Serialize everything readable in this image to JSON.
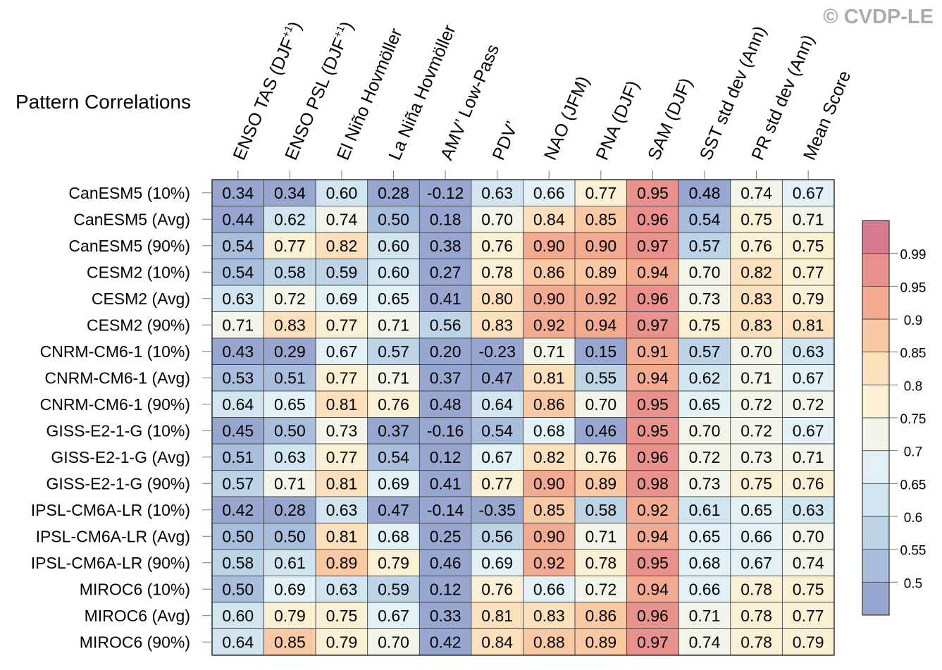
{
  "watermark": "© CVDP-LE",
  "chart_data": {
    "type": "heatmap",
    "title": "Pattern Correlations",
    "columns": [
      "ENSO TAS (DJF+1)",
      "ENSO PSL (DJF+1)",
      "El Niño Hovmöller",
      "La Niña Hovmöller",
      "AMV' Low-Pass",
      "PDV'",
      "NAO (JFM)",
      "PNA (DJF)",
      "SAM (DJF)",
      "SST std dev (Ann)",
      "PR std dev (Ann)",
      "Mean Score"
    ],
    "column_label_parts": [
      {
        "text": "ENSO TAS (DJF",
        "sup": "+1",
        "tail": ")"
      },
      {
        "text": "ENSO PSL (DJF",
        "sup": "+1",
        "tail": ")"
      },
      {
        "text": "El Niño Hovmöller",
        "sup": "",
        "tail": ""
      },
      {
        "text": "La Niña Hovmöller",
        "sup": "",
        "tail": ""
      },
      {
        "text": "AMV’ Low-Pass",
        "sup": "",
        "tail": ""
      },
      {
        "text": "PDV’",
        "sup": "",
        "tail": ""
      },
      {
        "text": "NAO (JFM)",
        "sup": "",
        "tail": ""
      },
      {
        "text": "PNA (DJF)",
        "sup": "",
        "tail": ""
      },
      {
        "text": "SAM (DJF)",
        "sup": "",
        "tail": ""
      },
      {
        "text": "SST std dev (Ann)",
        "sup": "",
        "tail": ""
      },
      {
        "text": "PR std dev (Ann)",
        "sup": "",
        "tail": ""
      },
      {
        "text": "Mean Score",
        "sup": "",
        "tail": ""
      }
    ],
    "rows": [
      "CanESM5 (10%)",
      "CanESM5 (Avg)",
      "CanESM5 (90%)",
      "CESM2 (10%)",
      "CESM2 (Avg)",
      "CESM2 (90%)",
      "CNRM-CM6-1 (10%)",
      "CNRM-CM6-1 (Avg)",
      "CNRM-CM6-1 (90%)",
      "GISS-E2-1-G (10%)",
      "GISS-E2-1-G (Avg)",
      "GISS-E2-1-G (90%)",
      "IPSL-CM6A-LR (10%)",
      "IPSL-CM6A-LR (Avg)",
      "IPSL-CM6A-LR (90%)",
      "MIROC6 (10%)",
      "MIROC6 (Avg)",
      "MIROC6 (90%)"
    ],
    "values": [
      [
        "0.34",
        "0.34",
        "0.60",
        "0.28",
        "-0.12",
        "0.63",
        "0.66",
        "0.77",
        "0.95",
        "0.48",
        "0.74",
        "0.67"
      ],
      [
        "0.44",
        "0.62",
        "0.74",
        "0.50",
        "0.18",
        "0.70",
        "0.84",
        "0.85",
        "0.96",
        "0.54",
        "0.75",
        "0.71"
      ],
      [
        "0.54",
        "0.77",
        "0.82",
        "0.60",
        "0.38",
        "0.76",
        "0.90",
        "0.90",
        "0.97",
        "0.57",
        "0.76",
        "0.75"
      ],
      [
        "0.54",
        "0.58",
        "0.59",
        "0.60",
        "0.27",
        "0.78",
        "0.86",
        "0.89",
        "0.94",
        "0.70",
        "0.82",
        "0.77"
      ],
      [
        "0.63",
        "0.72",
        "0.69",
        "0.65",
        "0.41",
        "0.80",
        "0.90",
        "0.92",
        "0.96",
        "0.73",
        "0.83",
        "0.79"
      ],
      [
        "0.71",
        "0.83",
        "0.77",
        "0.71",
        "0.56",
        "0.83",
        "0.92",
        "0.94",
        "0.97",
        "0.75",
        "0.83",
        "0.81"
      ],
      [
        "0.43",
        "0.29",
        "0.67",
        "0.57",
        "0.20",
        "-0.23",
        "0.71",
        "0.15",
        "0.91",
        "0.57",
        "0.70",
        "0.63"
      ],
      [
        "0.53",
        "0.51",
        "0.77",
        "0.71",
        "0.37",
        "0.47",
        "0.81",
        "0.55",
        "0.94",
        "0.62",
        "0.71",
        "0.67"
      ],
      [
        "0.64",
        "0.65",
        "0.81",
        "0.76",
        "0.48",
        "0.64",
        "0.86",
        "0.70",
        "0.95",
        "0.65",
        "0.72",
        "0.72"
      ],
      [
        "0.45",
        "0.50",
        "0.73",
        "0.37",
        "-0.16",
        "0.54",
        "0.68",
        "0.46",
        "0.95",
        "0.70",
        "0.72",
        "0.67"
      ],
      [
        "0.51",
        "0.63",
        "0.77",
        "0.54",
        "0.12",
        "0.67",
        "0.82",
        "0.76",
        "0.96",
        "0.72",
        "0.73",
        "0.71"
      ],
      [
        "0.57",
        "0.71",
        "0.81",
        "0.69",
        "0.41",
        "0.77",
        "0.90",
        "0.89",
        "0.98",
        "0.73",
        "0.75",
        "0.76"
      ],
      [
        "0.42",
        "0.28",
        "0.63",
        "0.47",
        "-0.14",
        "-0.35",
        "0.85",
        "0.58",
        "0.92",
        "0.61",
        "0.65",
        "0.63"
      ],
      [
        "0.50",
        "0.50",
        "0.81",
        "0.68",
        "0.25",
        "0.56",
        "0.90",
        "0.71",
        "0.94",
        "0.65",
        "0.66",
        "0.70"
      ],
      [
        "0.58",
        "0.61",
        "0.89",
        "0.79",
        "0.46",
        "0.69",
        "0.92",
        "0.78",
        "0.95",
        "0.68",
        "0.67",
        "0.74"
      ],
      [
        "0.50",
        "0.69",
        "0.63",
        "0.59",
        "0.12",
        "0.76",
        "0.66",
        "0.72",
        "0.94",
        "0.66",
        "0.78",
        "0.75"
      ],
      [
        "0.60",
        "0.79",
        "0.75",
        "0.67",
        "0.33",
        "0.81",
        "0.83",
        "0.86",
        "0.96",
        "0.71",
        "0.78",
        "0.77"
      ],
      [
        "0.64",
        "0.85",
        "0.79",
        "0.70",
        "0.42",
        "0.84",
        "0.88",
        "0.89",
        "0.97",
        "0.74",
        "0.78",
        "0.79"
      ]
    ],
    "colorbar": {
      "levels": [
        "0.5",
        "0.55",
        "0.6",
        "0.65",
        "0.7",
        "0.75",
        "0.8",
        "0.85",
        "0.9",
        "0.95",
        "0.99"
      ],
      "thresholds": [
        0.5,
        0.55,
        0.6,
        0.65,
        0.7,
        0.75,
        0.8,
        0.85,
        0.9,
        0.95,
        0.99
      ],
      "colors": [
        "#97a7cf",
        "#a9bedc",
        "#bcd4e6",
        "#d0e5ef",
        "#e2f1f5",
        "#f3f5ea",
        "#fcf0d4",
        "#fce0bc",
        "#f9c9a4",
        "#f2aa90",
        "#e9918c",
        "#d67b8f"
      ]
    }
  }
}
